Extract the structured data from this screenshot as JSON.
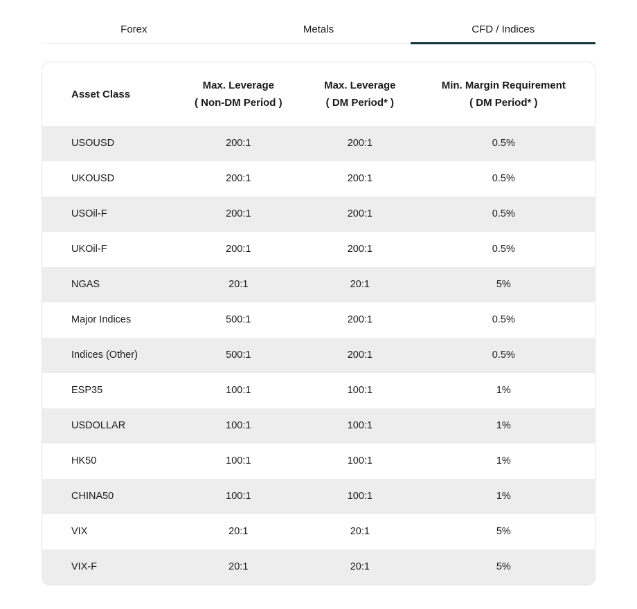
{
  "tabs": [
    {
      "label": "Forex",
      "active": false
    },
    {
      "label": "Metals",
      "active": false
    },
    {
      "label": "CFD / Indices",
      "active": true
    }
  ],
  "table": {
    "header": {
      "col1": {
        "title": "Asset Class",
        "subtitle": ""
      },
      "col2": {
        "title": "Max. Leverage",
        "subtitle": "( Non-DM Period )"
      },
      "col3": {
        "title": "Max. Leverage",
        "subtitle": "( DM Period* )"
      },
      "col4": {
        "title": "Min. Margin Requirement",
        "subtitle": "( DM Period* )"
      }
    },
    "rows": [
      [
        "USOUSD",
        "200:1",
        "200:1",
        "0.5%"
      ],
      [
        "UKOUSD",
        "200:1",
        "200:1",
        "0.5%"
      ],
      [
        "USOil-F",
        "200:1",
        "200:1",
        "0.5%"
      ],
      [
        "UKOil-F",
        "200:1",
        "200:1",
        "0.5%"
      ],
      [
        "NGAS",
        "20:1",
        "20:1",
        "5%"
      ],
      [
        "Major Indices",
        "500:1",
        "200:1",
        "0.5%"
      ],
      [
        "Indices (Other)",
        "500:1",
        "200:1",
        "0.5%"
      ],
      [
        "ESP35",
        "100:1",
        "100:1",
        "1%"
      ],
      [
        "USDOLLAR",
        "100:1",
        "100:1",
        "1%"
      ],
      [
        "HK50",
        "100:1",
        "100:1",
        "1%"
      ],
      [
        "CHINA50",
        "100:1",
        "100:1",
        "1%"
      ],
      [
        "VIX",
        "20:1",
        "20:1",
        "5%"
      ],
      [
        "VIX-F",
        "20:1",
        "20:1",
        "5%"
      ]
    ]
  },
  "colors": {
    "accent_underline": "#12333e",
    "row_stripe": "#ededed",
    "card_border": "#e3e3e3",
    "tab_divider": "#ececec",
    "text": "#1a1a1a"
  }
}
